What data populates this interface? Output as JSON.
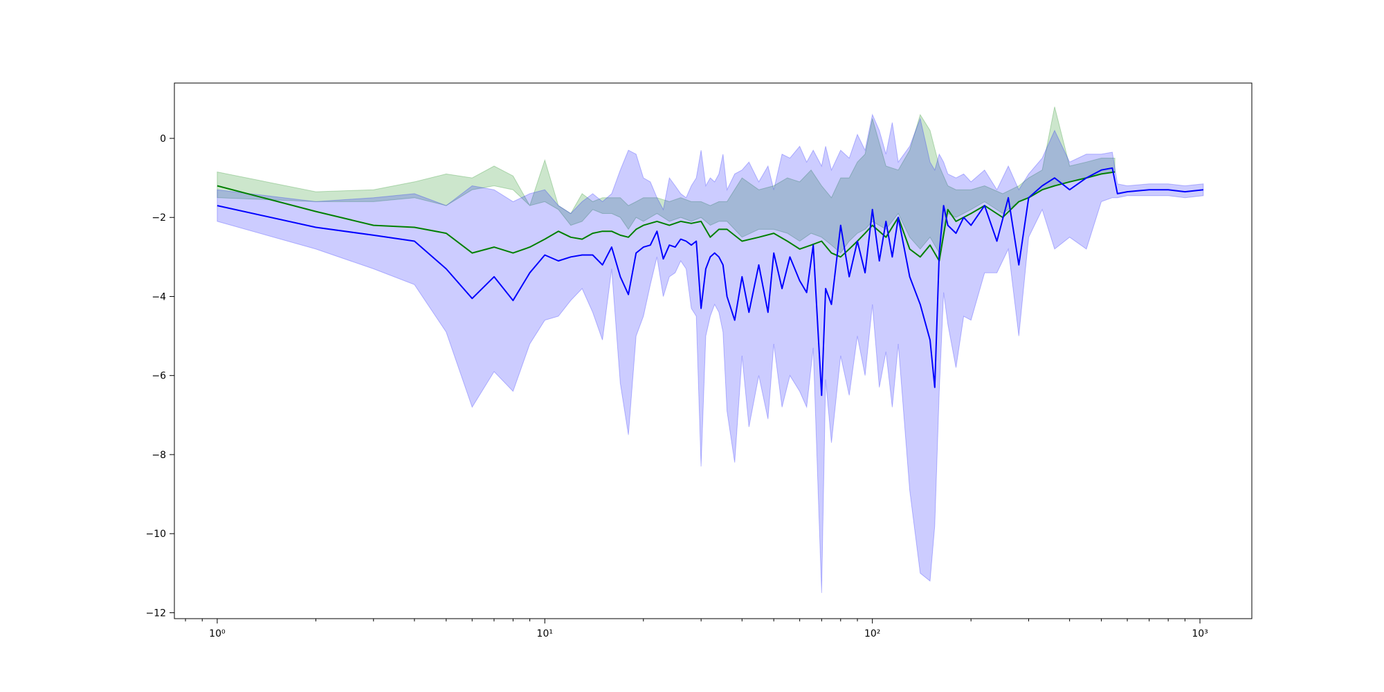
{
  "chart_data": {
    "type": "line",
    "title": "",
    "xlabel": "",
    "ylabel": "",
    "xscale": "log",
    "xlim": [
      0.74,
      1440
    ],
    "ylim": [
      -12.15,
      1.4
    ],
    "grid": false,
    "legend": "none",
    "x_ticks": [
      {
        "value": 1,
        "label": "10⁰"
      },
      {
        "value": 10,
        "label": "10¹"
      },
      {
        "value": 100,
        "label": "10²"
      },
      {
        "value": 1000,
        "label": "10³"
      }
    ],
    "y_ticks": [
      {
        "value": 0,
        "label": "0"
      },
      {
        "value": -2,
        "label": "−2"
      },
      {
        "value": -4,
        "label": "−4"
      },
      {
        "value": -6,
        "label": "−6"
      },
      {
        "value": -8,
        "label": "−8"
      },
      {
        "value": -10,
        "label": "−10"
      },
      {
        "value": -12,
        "label": "−12"
      }
    ],
    "series": [
      {
        "color": "#008000",
        "band_color": "#008000",
        "band_opacity": 0.2,
        "x": [
          1,
          2,
          3,
          4,
          5,
          6,
          7,
          8,
          9,
          10,
          11,
          12,
          13,
          14,
          15,
          16,
          17,
          18,
          19,
          20,
          22,
          24,
          26,
          28,
          30,
          32,
          34,
          36,
          40,
          45,
          50,
          55,
          60,
          65,
          70,
          75,
          80,
          85,
          90,
          95,
          100,
          110,
          120,
          130,
          140,
          150,
          160,
          170,
          180,
          200,
          220,
          250,
          280,
          300,
          330,
          360,
          400,
          450,
          500,
          550
        ],
        "y": [
          -1.2,
          -1.85,
          -2.2,
          -2.25,
          -2.4,
          -2.9,
          -2.75,
          -2.9,
          -2.75,
          -2.55,
          -2.35,
          -2.5,
          -2.55,
          -2.4,
          -2.35,
          -2.35,
          -2.45,
          -2.5,
          -2.3,
          -2.2,
          -2.1,
          -2.2,
          -2.1,
          -2.15,
          -2.1,
          -2.5,
          -2.3,
          -2.3,
          -2.6,
          -2.5,
          -2.4,
          -2.6,
          -2.8,
          -2.7,
          -2.6,
          -2.9,
          -3.0,
          -2.8,
          -2.6,
          -2.4,
          -2.2,
          -2.5,
          -2.0,
          -2.8,
          -3.0,
          -2.7,
          -3.1,
          -1.8,
          -2.1,
          -1.9,
          -1.7,
          -2.0,
          -1.6,
          -1.5,
          -1.3,
          -1.2,
          -1.1,
          -1.0,
          -0.9,
          -0.85
        ],
        "lower": [
          -1.5,
          -1.6,
          -1.6,
          -1.5,
          -1.7,
          -1.3,
          -1.2,
          -1.3,
          -1.7,
          -1.6,
          -1.8,
          -2.2,
          -2.1,
          -1.8,
          -1.9,
          -1.9,
          -2.0,
          -2.3,
          -2.0,
          -2.1,
          -1.9,
          -2.1,
          -2.0,
          -2.1,
          -2.0,
          -2.2,
          -2.1,
          -2.1,
          -2.5,
          -2.3,
          -2.3,
          -2.4,
          -2.6,
          -2.4,
          -2.5,
          -2.7,
          -2.9,
          -2.6,
          -2.4,
          -2.3,
          -2.1,
          -2.3,
          -1.9,
          -2.5,
          -2.8,
          -2.5,
          -2.9,
          -1.9,
          -2.0,
          -1.8,
          -1.6,
          -1.9,
          -1.6,
          -1.5,
          -1.3,
          -1.2,
          -1.1,
          -1.0,
          -0.9,
          -0.85
        ],
        "upper": [
          -0.85,
          -1.35,
          -1.3,
          -1.1,
          -0.9,
          -1.0,
          -0.7,
          -0.95,
          -1.7,
          -0.55,
          -1.7,
          -1.9,
          -1.4,
          -1.6,
          -1.5,
          -1.5,
          -1.5,
          -1.7,
          -1.6,
          -1.5,
          -1.5,
          -1.6,
          -1.5,
          -1.6,
          -1.6,
          -1.7,
          -1.6,
          -1.6,
          -1.0,
          -1.3,
          -1.2,
          -1.0,
          -1.1,
          -0.8,
          -1.2,
          -1.5,
          -1.0,
          -1.0,
          -0.6,
          -0.4,
          0.5,
          -0.7,
          -0.8,
          -0.3,
          0.6,
          0.2,
          -0.7,
          -1.2,
          -1.3,
          -1.3,
          -1.2,
          -1.4,
          -1.2,
          -1.0,
          -0.8,
          0.8,
          -0.7,
          -0.6,
          -0.5,
          -0.5
        ]
      },
      {
        "color": "#0000ff",
        "band_color": "#0000ff",
        "band_opacity": 0.2,
        "x": [
          1,
          2,
          3,
          4,
          5,
          6,
          7,
          8,
          9,
          10,
          11,
          12,
          13,
          14,
          15,
          16,
          17,
          18,
          19,
          20,
          21,
          22,
          23,
          24,
          25,
          26,
          27,
          28,
          29,
          30,
          31,
          32,
          33,
          34,
          35,
          36,
          38,
          40,
          42,
          45,
          48,
          50,
          53,
          56,
          60,
          63,
          66,
          70,
          72,
          75,
          80,
          85,
          90,
          95,
          100,
          105,
          110,
          115,
          120,
          130,
          140,
          150,
          155,
          160,
          165,
          170,
          180,
          190,
          200,
          220,
          240,
          260,
          280,
          300,
          330,
          360,
          400,
          450,
          500,
          540,
          560,
          600,
          700,
          800,
          900,
          1024
        ],
        "y": [
          -1.7,
          -2.25,
          -2.45,
          -2.6,
          -3.3,
          -4.05,
          -3.5,
          -4.1,
          -3.4,
          -2.95,
          -3.1,
          -3.0,
          -2.95,
          -2.95,
          -3.2,
          -2.75,
          -3.5,
          -3.95,
          -2.9,
          -2.75,
          -2.7,
          -2.35,
          -3.05,
          -2.7,
          -2.75,
          -2.55,
          -2.6,
          -2.7,
          -2.6,
          -4.3,
          -3.3,
          -3.0,
          -2.9,
          -3.0,
          -3.2,
          -4.0,
          -4.6,
          -3.5,
          -4.4,
          -3.2,
          -4.4,
          -2.9,
          -3.8,
          -3.0,
          -3.6,
          -3.9,
          -2.7,
          -6.5,
          -3.8,
          -4.2,
          -2.2,
          -3.5,
          -2.6,
          -3.4,
          -1.8,
          -3.1,
          -2.1,
          -3.0,
          -2.0,
          -3.5,
          -4.2,
          -5.1,
          -6.3,
          -2.9,
          -1.7,
          -2.2,
          -2.4,
          -2.0,
          -2.2,
          -1.7,
          -2.6,
          -1.5,
          -3.2,
          -1.5,
          -1.2,
          -1.0,
          -1.3,
          -1.0,
          -0.8,
          -0.75,
          -1.4,
          -1.35,
          -1.3,
          -1.3,
          -1.35,
          -1.3
        ],
        "lower": [
          -2.1,
          -2.8,
          -3.3,
          -3.7,
          -4.9,
          -6.8,
          -5.9,
          -6.4,
          -5.2,
          -4.6,
          -4.5,
          -4.1,
          -3.8,
          -4.4,
          -5.1,
          -3.3,
          -6.2,
          -7.5,
          -5.0,
          -4.5,
          -3.7,
          -3.0,
          -4.0,
          -3.5,
          -3.4,
          -3.1,
          -3.3,
          -4.3,
          -4.5,
          -8.3,
          -5.0,
          -4.5,
          -4.2,
          -4.4,
          -4.9,
          -6.9,
          -8.2,
          -5.5,
          -7.3,
          -6.0,
          -7.1,
          -5.2,
          -6.8,
          -6.0,
          -6.4,
          -6.8,
          -5.3,
          -11.5,
          -6.1,
          -7.7,
          -5.5,
          -6.5,
          -5.0,
          -6.0,
          -4.2,
          -6.3,
          -5.4,
          -6.8,
          -5.2,
          -8.9,
          -11.0,
          -11.2,
          -9.8,
          -6.4,
          -3.9,
          -4.7,
          -5.8,
          -4.5,
          -4.6,
          -3.4,
          -3.4,
          -2.8,
          -5.0,
          -2.5,
          -1.8,
          -2.8,
          -2.5,
          -2.8,
          -1.6,
          -1.5,
          -1.5,
          -1.45,
          -1.45,
          -1.45,
          -1.5,
          -1.45
        ],
        "upper": [
          -1.3,
          -1.6,
          -1.5,
          -1.4,
          -1.7,
          -1.2,
          -1.3,
          -1.6,
          -1.4,
          -1.3,
          -1.7,
          -1.9,
          -1.6,
          -1.4,
          -1.6,
          -1.4,
          -0.8,
          -0.3,
          -0.4,
          -1.0,
          -1.1,
          -1.5,
          -1.8,
          -1.0,
          -1.2,
          -1.4,
          -1.5,
          -1.2,
          -1.0,
          -0.3,
          -1.2,
          -1.0,
          -1.1,
          -0.9,
          -0.4,
          -1.3,
          -0.9,
          -0.8,
          -0.6,
          -1.1,
          -0.7,
          -1.3,
          -0.4,
          -0.5,
          -0.2,
          -0.6,
          -0.3,
          -0.7,
          -0.2,
          -0.8,
          -0.3,
          -0.5,
          0.1,
          -0.3,
          0.6,
          0.2,
          -0.4,
          0.4,
          -0.6,
          -0.2,
          0.5,
          -0.6,
          -0.8,
          -0.4,
          -0.6,
          -0.9,
          -1.0,
          -0.9,
          -1.1,
          -0.8,
          -1.3,
          -0.7,
          -1.3,
          -0.9,
          -0.5,
          0.2,
          -0.6,
          -0.4,
          -0.4,
          -0.35,
          -1.15,
          -1.2,
          -1.15,
          -1.15,
          -1.2,
          -1.15
        ]
      }
    ]
  }
}
